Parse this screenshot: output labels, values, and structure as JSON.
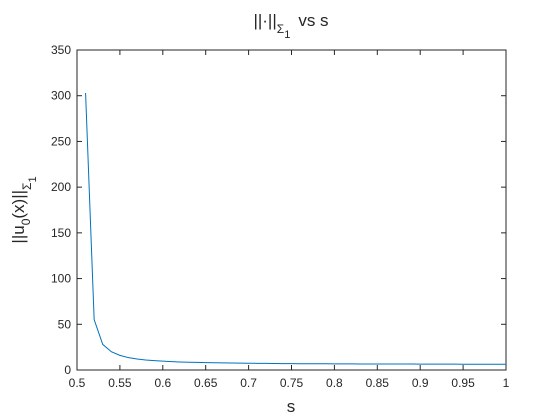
{
  "chart_data": {
    "type": "line",
    "title": [
      "||·||",
      "Σ",
      "1",
      "vs s"
    ],
    "xlabel": "s",
    "ylabel": [
      "||u",
      "0",
      "(x)||",
      "Σ",
      "1"
    ],
    "x": [
      0.51,
      0.52,
      0.53,
      0.54,
      0.55,
      0.56,
      0.57,
      0.58,
      0.59,
      0.6,
      0.61,
      0.62,
      0.63,
      0.64,
      0.65,
      0.66,
      0.67,
      0.68,
      0.69,
      0.7,
      0.71,
      0.72,
      0.73,
      0.74,
      0.75,
      0.76,
      0.77,
      0.78,
      0.79,
      0.8,
      0.81,
      0.82,
      0.83,
      0.84,
      0.85,
      0.86,
      0.87,
      0.88,
      0.89,
      0.9,
      0.91,
      0.92,
      0.93,
      0.94,
      0.95,
      0.96,
      0.97,
      0.98,
      0.99,
      1
    ],
    "series": [
      {
        "color": "#0072bd",
        "values": [
          303,
          55,
          28,
          20,
          16,
          13.5,
          12,
          11,
          10.3,
          9.7,
          9.2,
          8.8,
          8.5,
          8.3,
          8.1,
          7.9,
          7.8,
          7.6,
          7.5,
          7.4,
          7.3,
          7.2,
          7.1,
          7.0,
          7.0,
          6.9,
          6.9,
          6.8,
          6.8,
          6.7,
          6.7,
          6.7,
          6.6,
          6.6,
          6.6,
          6.5,
          6.5,
          6.5,
          6.5,
          6.4,
          6.4,
          6.4,
          6.4,
          6.4,
          6.3,
          6.3,
          6.3,
          6.3,
          6.3,
          6.3
        ]
      }
    ],
    "xlim": [
      0.5,
      1
    ],
    "ylim": [
      0,
      350
    ],
    "xticks": [
      0.5,
      0.55,
      0.6,
      0.65,
      0.7,
      0.75,
      0.8,
      0.85,
      0.9,
      0.95,
      1
    ],
    "yticks": [
      0,
      50,
      100,
      150,
      200,
      250,
      300,
      350
    ],
    "grid": false
  }
}
